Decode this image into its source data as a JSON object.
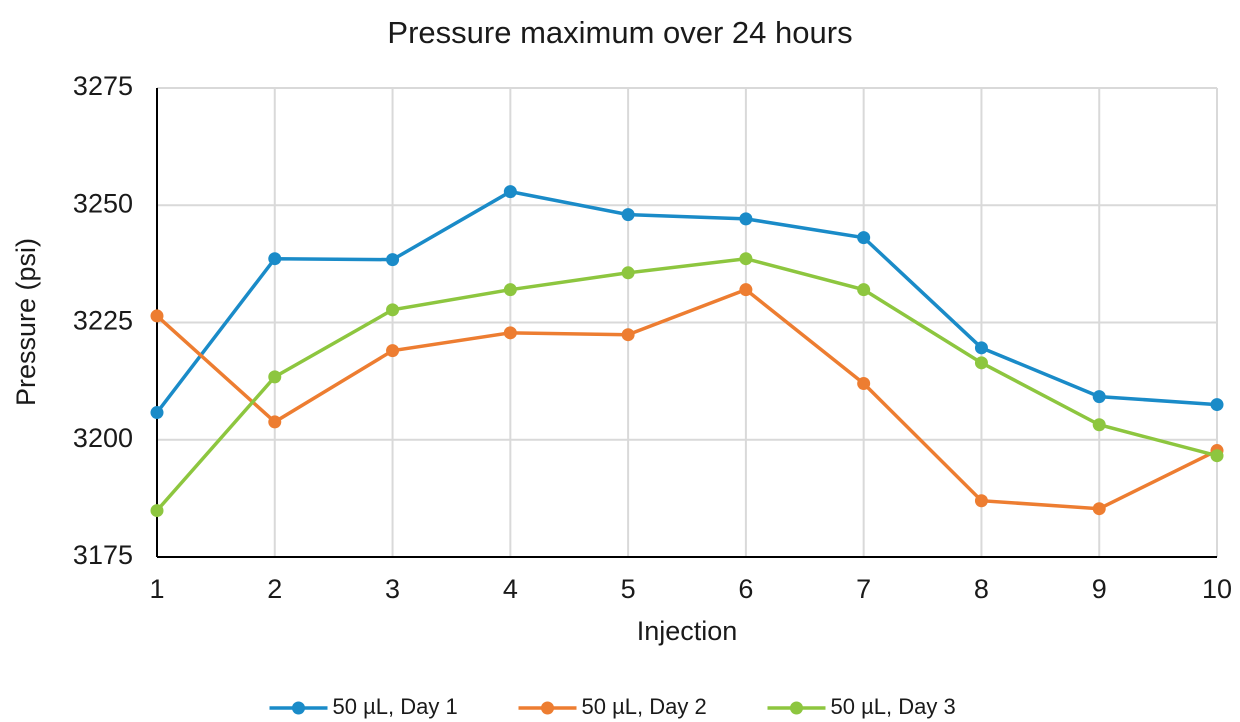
{
  "chart_data": {
    "type": "line",
    "title": "Pressure maximum over 24 hours",
    "x_label": "Injection",
    "y_label": "Pressure (psi)",
    "x": [
      1,
      2,
      3,
      4,
      5,
      6,
      7,
      8,
      9,
      10
    ],
    "xlim": [
      1,
      10
    ],
    "xticks": [
      1,
      2,
      3,
      4,
      5,
      6,
      7,
      8,
      9,
      10
    ],
    "ylim": [
      3175,
      3275
    ],
    "yticks": [
      3175,
      3200,
      3225,
      3250,
      3275
    ],
    "grid": true,
    "legend": "bottom",
    "series": [
      {
        "name": "50 µL, Day 1",
        "color": "#1a8bc8",
        "values": [
          3205.8,
          3238.6,
          3238.4,
          3252.9,
          3248.0,
          3247.1,
          3243.1,
          3219.6,
          3209.2,
          3207.5
        ]
      },
      {
        "name": "50 µL, Day 2",
        "color": "#ed7d31",
        "values": [
          3226.4,
          3203.8,
          3219.0,
          3222.8,
          3222.4,
          3232.0,
          3212.0,
          3187.0,
          3185.3,
          3197.7
        ]
      },
      {
        "name": "50 µL, Day 3",
        "color": "#8dc63f",
        "values": [
          3184.9,
          3213.4,
          3227.7,
          3232.0,
          3235.6,
          3238.6,
          3232.0,
          3216.4,
          3203.2,
          3196.6
        ]
      }
    ]
  }
}
